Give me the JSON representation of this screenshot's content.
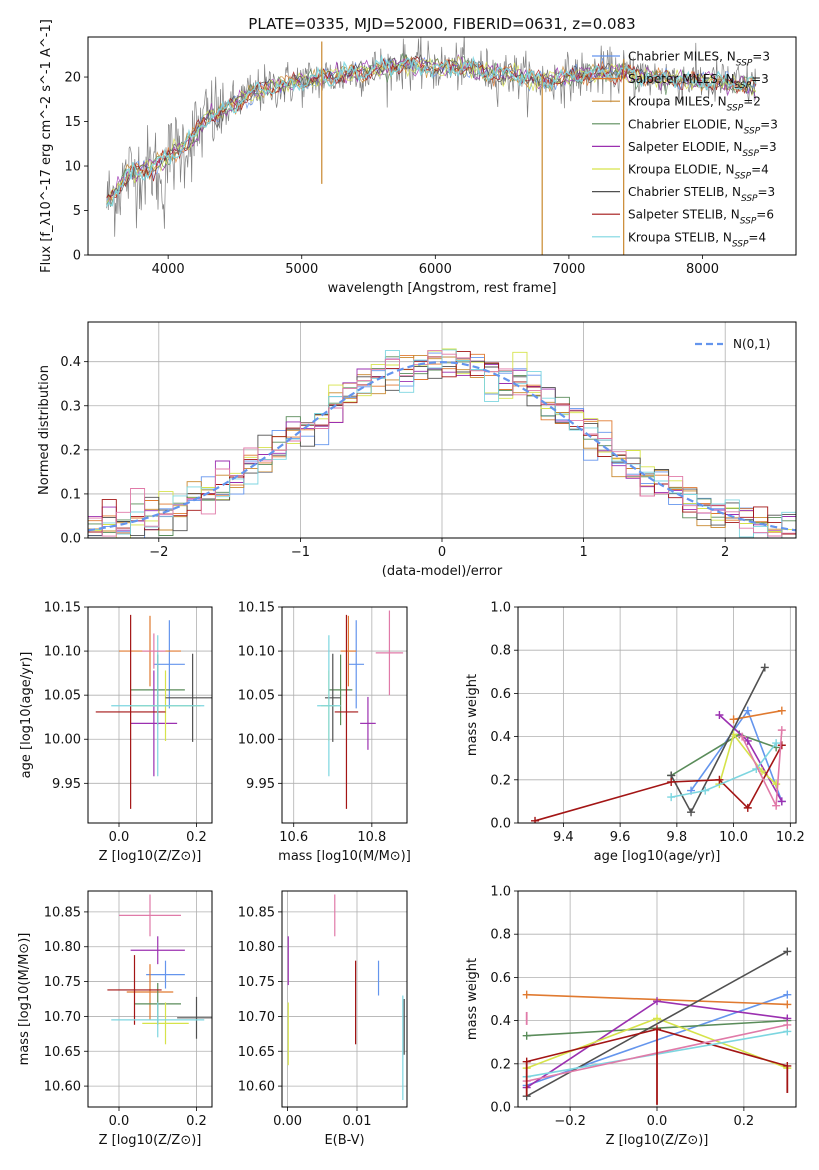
{
  "palette": {
    "Chabrier MILES": "#6495ed",
    "Salpeter MILES": "#e07a30",
    "Kroupa MILES": "#c9882e",
    "Chabrier ELODIE": "#5a8c5a",
    "Salpeter ELODIE": "#9b30b0",
    "Kroupa ELODIE": "#d6e34a",
    "Chabrier STELIB": "#505050",
    "Salpeter STELIB": "#a31515",
    "Kroupa STELIB": "#7dd6e0",
    "pink": "#e07aa8"
  },
  "chart_data": [
    {
      "id": "spectrum",
      "type": "line",
      "title": "PLATE=0335, MJD=52000, FIBERID=0631, z=0.083",
      "xlabel": "wavelength [Angstrom, rest frame]",
      "ylabel": "Flux [f_λ10^-17 erg cm^-2 s^-1 A^-1]",
      "xlim": [
        3400,
        8700
      ],
      "ylim": [
        0,
        24.5
      ],
      "xticks": [
        4000,
        5000,
        6000,
        7000,
        8000
      ],
      "yticks": [
        0,
        5,
        10,
        15,
        20
      ],
      "grid": false,
      "legend_position": "right",
      "legend": [
        {
          "model": "Chabrier MILES",
          "nssp": "3"
        },
        {
          "model": "Salpeter MILES",
          "nssp": "3"
        },
        {
          "model": "Kroupa MILES",
          "nssp": "2"
        },
        {
          "model": "Chabrier ELODIE",
          "nssp": "3"
        },
        {
          "model": "Salpeter ELODIE",
          "nssp": "3"
        },
        {
          "model": "Kroupa ELODIE",
          "nssp": "4"
        },
        {
          "model": "Chabrier STELIB",
          "nssp": "3"
        },
        {
          "model": "Salpeter STELIB",
          "nssp": "6"
        },
        {
          "model": "Kroupa STELIB",
          "nssp": "4"
        }
      ],
      "continuum": {
        "x": [
          3550,
          3700,
          3800,
          3900,
          4000,
          4100,
          4200,
          4300,
          4400,
          4500,
          4600,
          4800,
          5000,
          5200,
          5400,
          5600,
          5800,
          6000,
          6200,
          6400,
          6600,
          6800,
          7000,
          7200,
          7400,
          7600,
          7800,
          8000,
          8200,
          8400
        ],
        "y": [
          6,
          9,
          9.5,
          10,
          11,
          12,
          13.5,
          15.5,
          16,
          17,
          18,
          19,
          19.5,
          20,
          20.5,
          21,
          21.5,
          21,
          21.2,
          20.5,
          20.2,
          19.5,
          20,
          20.5,
          20.5,
          20,
          19.8,
          19.5,
          19.3,
          19
        ]
      },
      "spikes": [
        {
          "x": 5150,
          "y_top": 24,
          "y_bottom": 8
        },
        {
          "x": 6800,
          "y_top": 20,
          "y_bottom": 0
        },
        {
          "x": 7410,
          "y_top": 22,
          "y_bottom": 0
        }
      ]
    },
    {
      "id": "residuals",
      "type": "area",
      "xlabel": "(data-model)/error",
      "ylabel": "Normed distribution",
      "xlim": [
        -2.5,
        2.5
      ],
      "ylim": [
        0,
        0.49
      ],
      "xticks": [
        -2,
        -1,
        0,
        1,
        2
      ],
      "yticks": [
        0.0,
        0.1,
        0.2,
        0.3,
        0.4
      ],
      "grid": true,
      "legend_position": "top-right",
      "legend": [
        "N(0,1)"
      ],
      "bin_width": 0.1
    },
    {
      "id": "age_vs_Z",
      "type": "scatter",
      "xlabel": "Z [log10(Z/Z⊙)]",
      "ylabel": "age  [log10(age/yr)]",
      "xlim": [
        -0.08,
        0.24
      ],
      "ylim": [
        9.905,
        10.15
      ],
      "xticks": [
        0.0,
        0.2
      ],
      "yticks": [
        9.95,
        10.0,
        10.05,
        10.1,
        10.15
      ],
      "grid": true,
      "points": [
        {
          "model": "Chabrier MILES",
          "x": 0.13,
          "y": 10.085,
          "xerr": 0.04,
          "yerr": 0.05
        },
        {
          "model": "Salpeter MILES",
          "x": 0.08,
          "y": 10.1,
          "xerr": 0.08,
          "yerr": 0.04
        },
        {
          "model": "Chabrier ELODIE",
          "x": 0.1,
          "y": 10.056,
          "xerr": 0.07,
          "yerr": 0.04
        },
        {
          "model": "Salpeter ELODIE",
          "x": 0.09,
          "y": 10.018,
          "xerr": 0.06,
          "yerr": 0.06
        },
        {
          "model": "Kroupa ELODIE",
          "x": 0.12,
          "y": 10.038,
          "xerr": 0.09,
          "yerr": 0.04
        },
        {
          "model": "Chabrier STELIB",
          "x": 0.19,
          "y": 10.047,
          "xerr": 0.07,
          "yerr": 0.05
        },
        {
          "model": "Salpeter STELIB",
          "x": 0.03,
          "y": 10.031,
          "xerr": 0.09,
          "yerr": 0.11
        },
        {
          "model": "Kroupa STELIB",
          "x": 0.1,
          "y": 10.038,
          "xerr": 0.12,
          "yerr": 0.08
        },
        {
          "model": "pink",
          "x": 0.09,
          "y": 10.1,
          "xerr": 0.03,
          "yerr": 0.02
        }
      ]
    },
    {
      "id": "age_vs_mass",
      "type": "scatter",
      "xlabel": "mass [log10(M/M⊙)]",
      "ylabel": "",
      "xlim": [
        10.57,
        10.89
      ],
      "ylim": [
        9.905,
        10.15
      ],
      "xticks": [
        10.6,
        10.8
      ],
      "yticks": [
        9.95,
        10.0,
        10.05,
        10.1,
        10.15
      ],
      "grid": true,
      "points": [
        {
          "model": "Chabrier MILES",
          "x": 10.76,
          "y": 10.085,
          "xerr": 0.02,
          "yerr": 0.05
        },
        {
          "model": "Salpeter MILES",
          "x": 10.74,
          "y": 10.1,
          "xerr": 0.02,
          "yerr": 0.04
        },
        {
          "model": "Chabrier ELODIE",
          "x": 10.72,
          "y": 10.056,
          "xerr": 0.03,
          "yerr": 0.04
        },
        {
          "model": "Salpeter ELODIE",
          "x": 10.79,
          "y": 10.018,
          "xerr": 0.02,
          "yerr": 0.03
        },
        {
          "model": "Kroupa ELODIE",
          "x": 10.69,
          "y": 10.038,
          "xerr": 0.02,
          "yerr": 0.04
        },
        {
          "model": "Chabrier STELIB",
          "x": 10.7,
          "y": 10.047,
          "xerr": 0.02,
          "yerr": 0.05
        },
        {
          "model": "Salpeter STELIB",
          "x": 10.735,
          "y": 10.031,
          "xerr": 0.03,
          "yerr": 0.11
        },
        {
          "model": "Kroupa STELIB",
          "x": 10.69,
          "y": 10.038,
          "xerr": 0.03,
          "yerr": 0.08
        },
        {
          "model": "pink",
          "x": 10.845,
          "y": 10.098,
          "xerr": 0.035,
          "yerr": 0.048
        }
      ]
    },
    {
      "id": "weight_vs_age",
      "type": "line",
      "xlabel": "age  [log10(age/yr)]",
      "ylabel": "mass weight",
      "xlim": [
        9.24,
        10.22
      ],
      "ylim": [
        0,
        1.0
      ],
      "xticks": [
        9.4,
        9.6,
        9.8,
        10.0,
        10.2
      ],
      "yticks": [
        0.0,
        0.2,
        0.4,
        0.6,
        0.8,
        1.0
      ],
      "grid": true,
      "series": [
        {
          "model": "Chabrier MILES",
          "x": [
            9.85,
            10.05,
            10.17
          ],
          "y": [
            0.15,
            0.52,
            0.1
          ]
        },
        {
          "model": "Salpeter MILES",
          "x": [
            10.0,
            10.17
          ],
          "y": [
            0.48,
            0.52
          ]
        },
        {
          "model": "Chabrier ELODIE",
          "x": [
            9.78,
            10.02,
            10.15
          ],
          "y": [
            0.22,
            0.41,
            0.35
          ]
        },
        {
          "model": "Salpeter ELODIE",
          "x": [
            9.95,
            10.05,
            10.17
          ],
          "y": [
            0.5,
            0.38,
            0.1
          ]
        },
        {
          "model": "Kroupa ELODIE",
          "x": [
            9.95,
            10.0,
            10.1,
            10.15
          ],
          "y": [
            0.18,
            0.41,
            0.24,
            0.18
          ]
        },
        {
          "model": "Chabrier STELIB",
          "x": [
            9.78,
            9.85,
            10.11
          ],
          "y": [
            0.22,
            0.05,
            0.72
          ]
        },
        {
          "model": "Salpeter STELIB",
          "x": [
            9.3,
            9.78,
            9.95,
            10.05,
            10.17
          ],
          "y": [
            0.01,
            0.19,
            0.2,
            0.07,
            0.36
          ]
        },
        {
          "model": "Kroupa STELIB",
          "x": [
            9.78,
            9.9,
            10.08,
            10.15
          ],
          "y": [
            0.12,
            0.15,
            0.25,
            0.37
          ]
        },
        {
          "model": "pink",
          "x": [
            10.03,
            10.15,
            10.17
          ],
          "y": [
            0.4,
            0.08,
            0.43
          ]
        }
      ]
    },
    {
      "id": "mass_vs_Z",
      "type": "scatter",
      "xlabel": "Z [log10(Z/Z⊙)]",
      "ylabel": "mass [log10(M/M⊙)]",
      "xlim": [
        -0.08,
        0.24
      ],
      "ylim": [
        10.57,
        10.88
      ],
      "xticks": [
        0.0,
        0.2
      ],
      "yticks": [
        10.6,
        10.65,
        10.7,
        10.75,
        10.8,
        10.85
      ],
      "grid": true,
      "points": [
        {
          "model": "Chabrier MILES",
          "x": 0.12,
          "y": 10.76,
          "xerr": 0.05,
          "yerr": 0.02
        },
        {
          "model": "Salpeter MILES",
          "x": 0.08,
          "y": 10.735,
          "xerr": 0.06,
          "yerr": 0.04
        },
        {
          "model": "Chabrier ELODIE",
          "x": 0.1,
          "y": 10.718,
          "xerr": 0.06,
          "yerr": 0.03
        },
        {
          "model": "Salpeter ELODIE",
          "x": 0.1,
          "y": 10.795,
          "xerr": 0.07,
          "yerr": 0.02
        },
        {
          "model": "Kroupa ELODIE",
          "x": 0.12,
          "y": 10.69,
          "xerr": 0.06,
          "yerr": 0.03
        },
        {
          "model": "Chabrier STELIB",
          "x": 0.2,
          "y": 10.698,
          "xerr": 0.05,
          "yerr": 0.03
        },
        {
          "model": "Salpeter STELIB",
          "x": 0.04,
          "y": 10.738,
          "xerr": 0.07,
          "yerr": 0.05
        },
        {
          "model": "Kroupa STELIB",
          "x": 0.1,
          "y": 10.695,
          "xerr": 0.12,
          "yerr": 0.025
        },
        {
          "model": "pink",
          "x": 0.08,
          "y": 10.845,
          "xerr": 0.08,
          "yerr": 0.03
        }
      ]
    },
    {
      "id": "mass_vs_ebv",
      "type": "scatter",
      "xlabel": "E(B-V)",
      "ylabel": "",
      "xlim": [
        -0.0008,
        0.0172
      ],
      "ylim": [
        10.57,
        10.88
      ],
      "xticks": [
        0.0,
        0.01
      ],
      "yticks": [
        10.6,
        10.65,
        10.7,
        10.75,
        10.8,
        10.85
      ],
      "grid": true,
      "points": [
        {
          "model": "Chabrier MILES",
          "x": 0.0131,
          "y": 10.755,
          "xerr": 0,
          "yerr": 0.025
        },
        {
          "model": "Salpeter STELIB",
          "x": 0.0098,
          "y": 10.72,
          "xerr": 0,
          "yerr": 0.06
        },
        {
          "model": "pink",
          "x": 0.0068,
          "y": 10.845,
          "xerr": 0,
          "yerr": 0.03
        },
        {
          "model": "Salpeter ELODIE",
          "x": 0.0001,
          "y": 10.78,
          "xerr": 0,
          "yerr": 0.035
        },
        {
          "model": "Kroupa ELODIE",
          "x": 0.0001,
          "y": 10.675,
          "xerr": 0,
          "yerr": 0.045
        },
        {
          "model": "Kroupa STELIB",
          "x": 0.0166,
          "y": 10.655,
          "xerr": 0,
          "yerr": 0.075
        },
        {
          "model": "Chabrier STELIB",
          "x": 0.0168,
          "y": 10.685,
          "xerr": 0,
          "yerr": 0.04
        }
      ]
    },
    {
      "id": "weight_vs_Z",
      "type": "line",
      "xlabel": "Z [log10(Z/Z⊙)]",
      "ylabel": "mass weight",
      "xlim": [
        -0.32,
        0.32
      ],
      "ylim": [
        0,
        1.0
      ],
      "xticks": [
        -0.2,
        0.0,
        0.2
      ],
      "yticks": [
        0.0,
        0.2,
        0.4,
        0.6,
        0.8,
        1.0
      ],
      "grid": true,
      "series": [
        {
          "model": "Chabrier MILES",
          "x": [
            -0.3,
            0.3
          ],
          "y": [
            0.1,
            0.52
          ]
        },
        {
          "model": "Salpeter MILES",
          "x": [
            -0.3,
            0.3
          ],
          "y": [
            0.52,
            0.475
          ]
        },
        {
          "model": "Chabrier ELODIE",
          "x": [
            -0.3,
            0.3
          ],
          "y": [
            0.33,
            0.4
          ]
        },
        {
          "model": "Salpeter ELODIE",
          "x": [
            -0.3,
            0.0,
            0.3
          ],
          "y": [
            0.09,
            0.49,
            0.41
          ]
        },
        {
          "model": "Kroupa ELODIE",
          "x": [
            -0.3,
            0.0,
            0.3
          ],
          "y": [
            0.18,
            0.41,
            0.18
          ]
        },
        {
          "model": "Chabrier STELIB",
          "x": [
            -0.3,
            0.3
          ],
          "y": [
            0.05,
            0.72
          ]
        },
        {
          "model": "Salpeter STELIB",
          "x": [
            -0.3,
            0.0,
            0.3
          ],
          "y": [
            0.21,
            0.36,
            0.19
          ]
        },
        {
          "model": "Kroupa STELIB",
          "x": [
            -0.3,
            0.3
          ],
          "y": [
            0.14,
            0.35
          ]
        },
        {
          "model": "pink",
          "x": [
            -0.3,
            0.3
          ],
          "y": [
            0.12,
            0.38
          ]
        }
      ],
      "extra_marks": [
        {
          "model": "Salpeter STELIB",
          "x": 0.0,
          "y_top": 0.36,
          "y_bottom": 0.01
        },
        {
          "model": "Salpeter STELIB",
          "x": 0.3,
          "y_top": 0.19,
          "y_bottom": 0.065
        },
        {
          "model": "Salpeter STELIB",
          "x": -0.3,
          "y_top": 0.21,
          "y_bottom": 0.05
        },
        {
          "model": "pink",
          "x": -0.3,
          "y_top": 0.44,
          "y_bottom": 0.38
        }
      ]
    }
  ]
}
